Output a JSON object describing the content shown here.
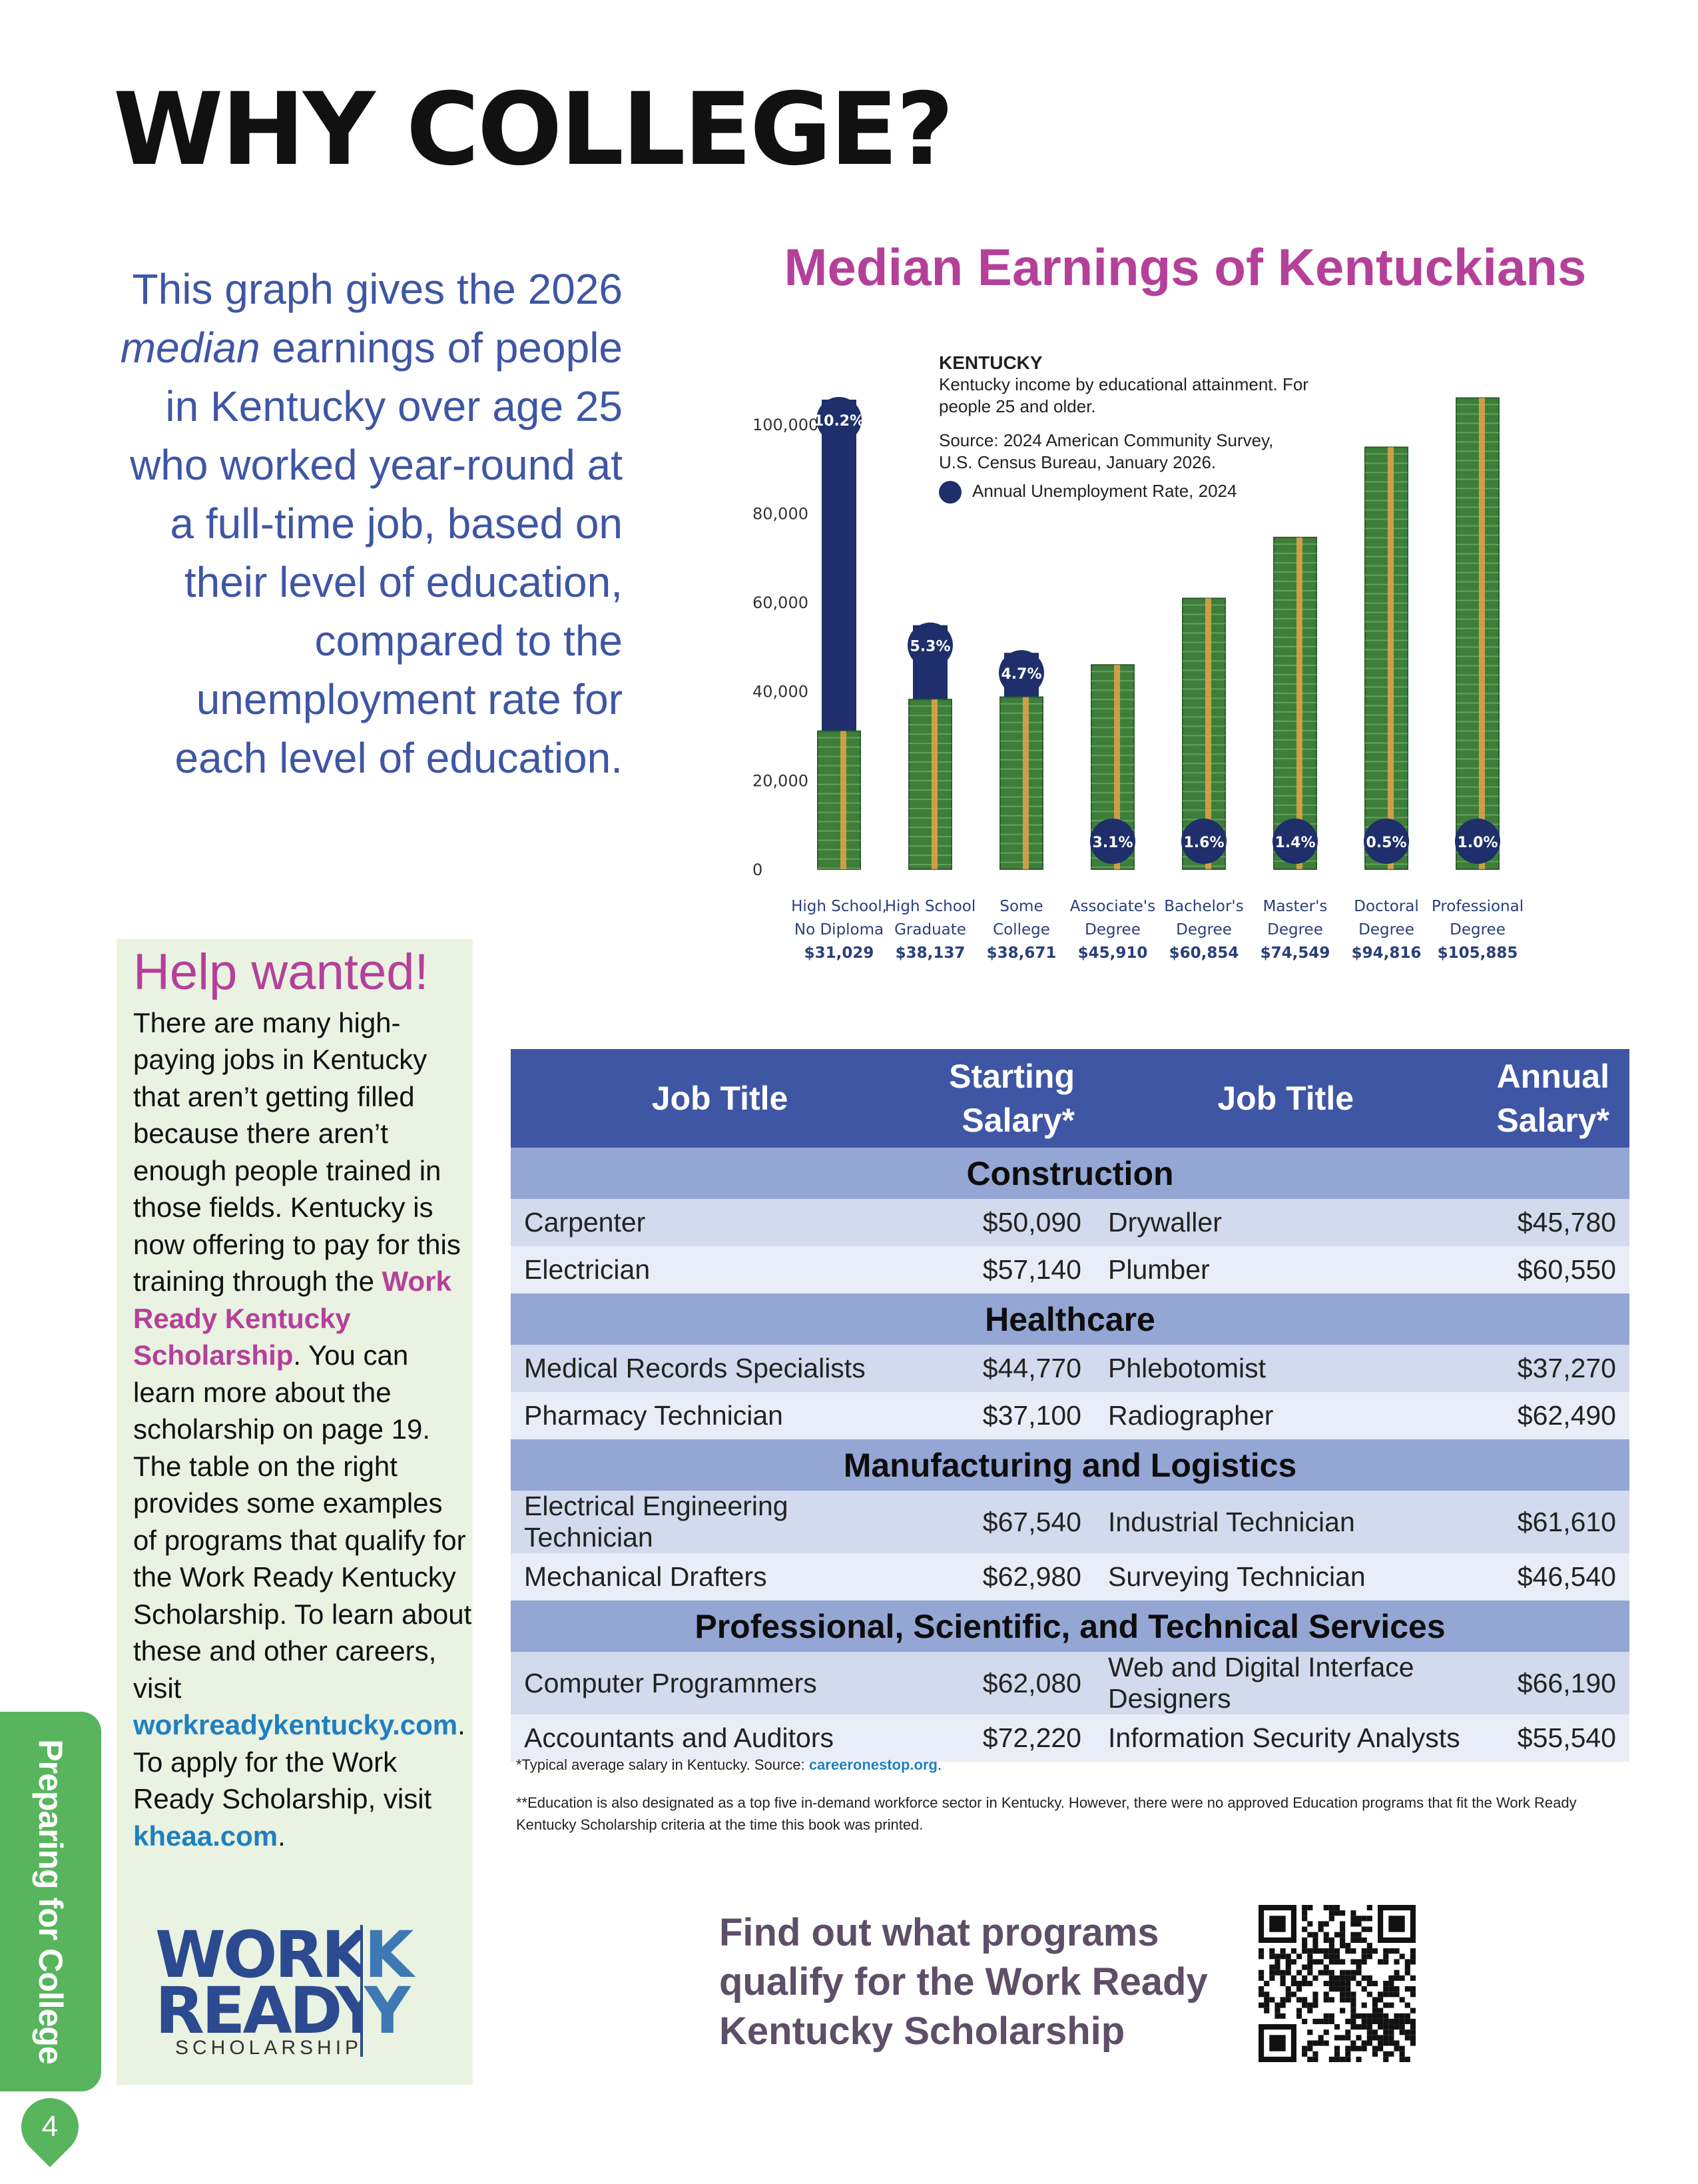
{
  "page": {
    "title": "WHY COLLEGE?",
    "side_tab": "Preparing for College",
    "page_number": "4"
  },
  "intro": {
    "part1": "This graph gives the 2026 ",
    "italic": "median",
    "part2": " earnings of people in Kentucky over age 25 who worked year-round at a full-time job, based on their level of education, compared to the unemployment rate for each level of education."
  },
  "chart_data": {
    "type": "bar",
    "title": "Median Earnings of Kentuckians",
    "subtitle_head": "KENTUCKY",
    "subtitle": "Kentucky income by educational attainment. For people 25 and older.",
    "source_line1": "Source: 2024 American Community Survey,",
    "source_line2": "U.S. Census Bureau, January 2026.",
    "legend": "Annual Unemployment Rate, 2024",
    "ylim": [
      0,
      110000
    ],
    "yticks": [
      "0",
      "20,000",
      "40,000",
      "60,000",
      "80,000",
      "100,000"
    ],
    "categories": [
      {
        "line1": "High School,",
        "line2": "No Diploma",
        "value_label": "$31,029",
        "earnings": 31029,
        "unemployment_label": "10.2%",
        "unemployment": 10.2
      },
      {
        "line1": "High School",
        "line2": "Graduate",
        "value_label": "$38,137",
        "earnings": 38137,
        "unemployment_label": "5.3%",
        "unemployment": 5.3
      },
      {
        "line1": "Some",
        "line2": "College",
        "value_label": "$38,671",
        "earnings": 38671,
        "unemployment_label": "4.7%",
        "unemployment": 4.7
      },
      {
        "line1": "Associate's",
        "line2": "Degree",
        "value_label": "$45,910",
        "earnings": 45910,
        "unemployment_label": "3.1%",
        "unemployment": 3.1
      },
      {
        "line1": "Bachelor's",
        "line2": "Degree",
        "value_label": "$60,854",
        "earnings": 60854,
        "unemployment_label": "1.6%",
        "unemployment": 1.6
      },
      {
        "line1": "Master's",
        "line2": "Degree",
        "value_label": "$74,549",
        "earnings": 74549,
        "unemployment_label": "1.4%",
        "unemployment": 1.4
      },
      {
        "line1": "Doctoral",
        "line2": "Degree",
        "value_label": "$94,816",
        "earnings": 94816,
        "unemployment_label": "0.5%",
        "unemployment": 0.5
      },
      {
        "line1": "Professional",
        "line2": "Degree",
        "value_label": "$105,885",
        "earnings": 105885,
        "unemployment_label": "1.0%",
        "unemployment": 1.0
      }
    ],
    "colors": {
      "money": "#3f7d3b",
      "band": "#e3a54a",
      "unemployment": "#1e2f6b"
    }
  },
  "help": {
    "title": "Help wanted!",
    "text1": "There are many high-paying jobs in Kentucky that aren’t getting filled because there aren’t enough people trained in those fields. Kentucky is now offering to pay for this training through the ",
    "link1": "Work Ready Kentucky Scholarship",
    "text2": ". You can learn more about the scholarship on page 19. The table on the right provides some examples of programs that qualify for the Work Ready Kentucky Scholarship. To learn about these and other careers, visit ",
    "link2": "workreadykentucky.com",
    "text3": ". To apply for the Work Ready Scholarship, visit ",
    "link3": "kheaa.com",
    "text4": ".",
    "logo_line1": "WORK",
    "logo_line2": "READY",
    "logo_sub": "SCHOLARSHIP"
  },
  "table": {
    "headers": [
      "Job Title",
      "Starting Salary*",
      "Job Title",
      "Annual Salary*"
    ],
    "sections": [
      {
        "name": "Construction",
        "rows": [
          [
            "Carpenter",
            "$50,090",
            "Drywaller",
            "$45,780"
          ],
          [
            "Electrician",
            "$57,140",
            "Plumber",
            "$60,550"
          ]
        ]
      },
      {
        "name": "Healthcare",
        "rows": [
          [
            "Medical Records Specialists",
            "$44,770",
            "Phlebotomist",
            "$37,270"
          ],
          [
            "Pharmacy Technician",
            "$37,100",
            "Radiographer",
            "$62,490"
          ]
        ]
      },
      {
        "name": "Manufacturing and Logistics",
        "rows": [
          [
            "Electrical Engineering Technician",
            "$67,540",
            "Industrial Technician",
            "$61,610"
          ],
          [
            "Mechanical Drafters",
            "$62,980",
            "Surveying Technician",
            "$46,540"
          ]
        ]
      },
      {
        "name": "Professional, Scientific, and Technical Services",
        "rows": [
          [
            "Computer Programmers",
            "$62,080",
            "Web and Digital Interface Designers",
            "$66,190"
          ],
          [
            "Accountants and Auditors",
            "$72,220",
            "Information Security Analysts",
            "$55,540"
          ]
        ]
      }
    ]
  },
  "footnotes": {
    "note1_text": "*Typical average salary in Kentucky. Source: ",
    "note1_link": "careeronestop.org",
    "note1_end": ".",
    "note2": "**Education is also designated as a top five in-demand workforce sector in Kentucky. However, there were no approved Education programs that fit the Work Ready Kentucky Scholarship criteria at the time this book was printed."
  },
  "cta": {
    "text": "Find out what programs qualify for the Work Ready Kentucky Scholarship"
  }
}
